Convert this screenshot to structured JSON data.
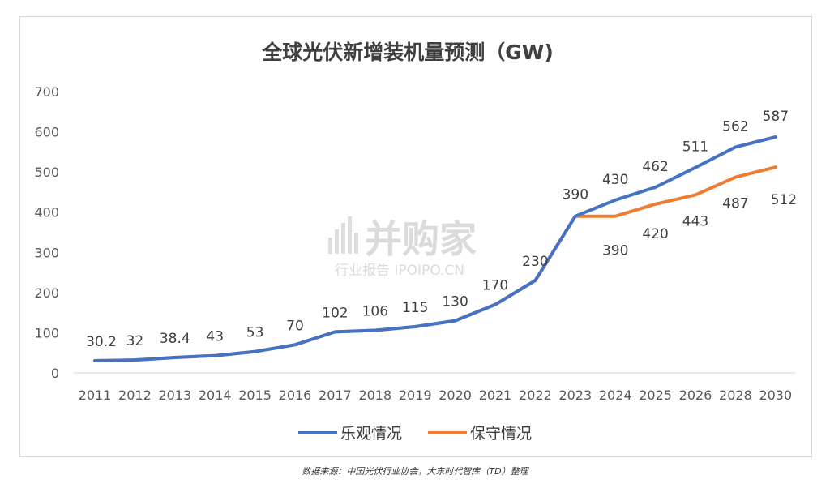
{
  "chart_data": {
    "type": "line",
    "title": "全球光伏新增装机量预测（GW)",
    "categories": [
      "2011",
      "2012",
      "2013",
      "2014",
      "2015",
      "2016",
      "2017",
      "2018",
      "2019",
      "2020",
      "2021",
      "2022",
      "2023",
      "2024",
      "2025",
      "2026",
      "2028",
      "2030"
    ],
    "series": [
      {
        "name": "乐观情况",
        "color": "#4472c4",
        "values": [
          30.2,
          32,
          38.4,
          43,
          53,
          70,
          102,
          106,
          115,
          130,
          170,
          230,
          390,
          430,
          462,
          511,
          562,
          587
        ]
      },
      {
        "name": "保守情况",
        "color": "#ed7d31",
        "values": [
          30.2,
          32,
          38.4,
          43,
          53,
          70,
          102,
          106,
          115,
          130,
          170,
          230,
          390,
          390,
          420,
          443,
          487,
          512
        ]
      }
    ],
    "data_labels": {
      "shared": [
        "30.2",
        "32",
        "38.4",
        "43",
        "53",
        "70",
        "102",
        "106",
        "115",
        "130",
        "170",
        "230",
        "390"
      ],
      "optimistic": [
        "430",
        "462",
        "511",
        "562",
        "587"
      ],
      "conservative": [
        "390",
        "420",
        "443",
        "487",
        "512"
      ]
    },
    "y_ticks": [
      "0",
      "100",
      "200",
      "300",
      "400",
      "500",
      "600",
      "700"
    ],
    "ylim": [
      0,
      700
    ],
    "grid": false,
    "legend_position": "bottom"
  },
  "watermark": {
    "brand": "并购家",
    "subtitle": "行业报告 IPOIPO.CN"
  },
  "source_note": "数据来源：中国光伏行业协会，大东时代智库（TD）整理"
}
